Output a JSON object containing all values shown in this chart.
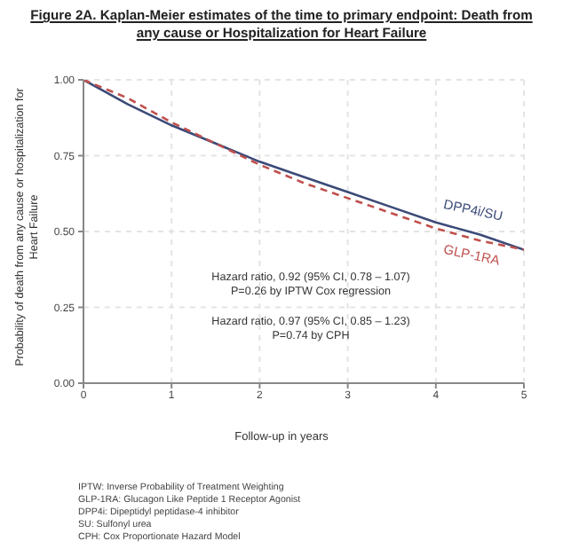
{
  "chart_data": {
    "type": "line",
    "title": "Figure 2A. Kaplan-Meier estimates of the time to primary endpoint: Death from any cause or Hospitalization for Heart Failure",
    "xlabel": "Follow-up in years",
    "ylabel": "Probability of death from any cause or hospitalization for Heart Failure",
    "x": [
      0,
      0.5,
      1,
      1.5,
      2,
      2.5,
      3,
      3.5,
      4,
      4.5,
      5
    ],
    "series": [
      {
        "name": "DPP4i/SU",
        "color": "#3b4a78",
        "line_style": "solid",
        "values": [
          1.0,
          0.92,
          0.85,
          0.79,
          0.73,
          0.68,
          0.63,
          0.58,
          0.53,
          0.49,
          0.44
        ]
      },
      {
        "name": "GLP-1RA",
        "color": "#c0504d",
        "line_style": "dashed",
        "values": [
          1.0,
          0.94,
          0.86,
          0.79,
          0.72,
          0.66,
          0.61,
          0.56,
          0.51,
          0.47,
          0.44
        ]
      }
    ],
    "xlim": [
      0,
      5
    ],
    "xticks": [
      0,
      1,
      2,
      3,
      4,
      5
    ],
    "ylim": [
      0,
      1
    ],
    "yticks": [
      {
        "value": 0,
        "label": "0.00"
      },
      {
        "value": 0.25,
        "label": "0.25"
      },
      {
        "value": 0.5,
        "label": "0.50"
      },
      {
        "value": 0.75,
        "label": "0.75"
      },
      {
        "value": 1,
        "label": "1.00"
      }
    ],
    "grid": true,
    "marker": "none",
    "legend": false,
    "annotations": [
      "Hazard ratio, 0.92 (95% CI, 0.78 – 1.07)",
      "P=0.26 by IPTW Cox regression",
      "Hazard ratio, 0.97 (95% CI, 0.85 – 1.23)",
      "P=0.74 by CPH",
      "IPTW: Inverse Probability of Treatment Weighting",
      "GLP-1RA: Glucagon Like Peptide 1 Receptor Agonist",
      "DPP4i: Dipeptidyl peptidase-4 inhibitor",
      "SU: Sulfonyl urea",
      "CPH: Cox Proportionate Hazard Model"
    ]
  }
}
